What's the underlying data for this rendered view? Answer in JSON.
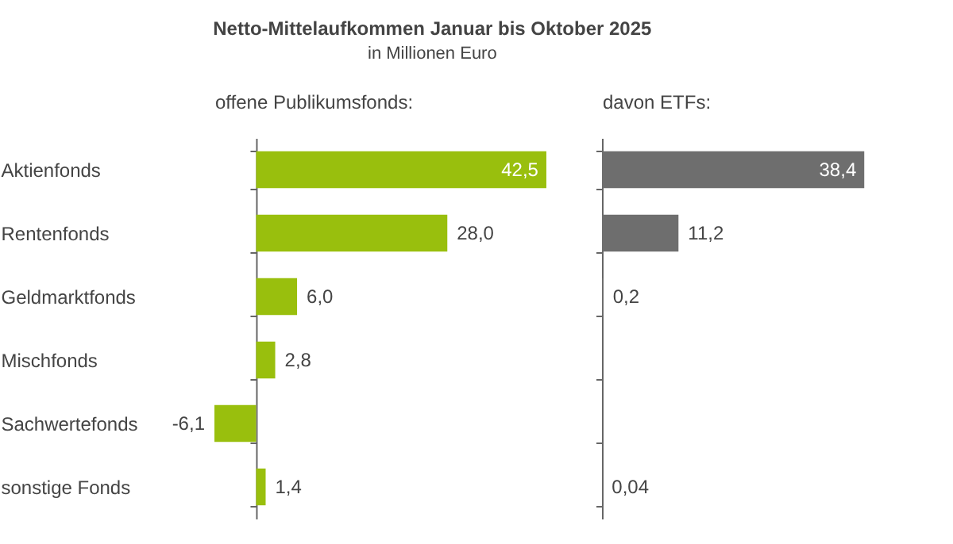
{
  "chart_data": [
    {
      "type": "bar",
      "orientation": "horizontal",
      "title": "Netto-Mittelaufkommen Januar bis Oktober 2025",
      "subtitle": "in Millionen Euro",
      "xlabel": "offene Publikumsfonds:",
      "categories": [
        "Aktienfonds",
        "Rentenfonds",
        "Geldmarktfonds",
        "Mischfonds",
        "Sachwertefonds",
        "sonstige Fonds"
      ],
      "series": [
        {
          "color": "#99bf0d",
          "values": [
            42.5,
            28.0,
            6.0,
            2.8,
            -6.1,
            1.4
          ],
          "value_labels": [
            "42,5",
            "28,0",
            "6,0",
            "2,8",
            "-6,1",
            "1,4"
          ]
        }
      ],
      "tick_labels": "y"
    },
    {
      "type": "bar",
      "orientation": "horizontal",
      "xlabel": "davon ETFs:",
      "series": [
        {
          "color": "#6e6e6e",
          "values": [
            38.4,
            11.2,
            0.2,
            null,
            null,
            0.04
          ],
          "value_labels": [
            "38,4",
            "11,2",
            "0,2",
            null,
            null,
            "0,04"
          ]
        }
      ],
      "tick_labels": false
    }
  ]
}
